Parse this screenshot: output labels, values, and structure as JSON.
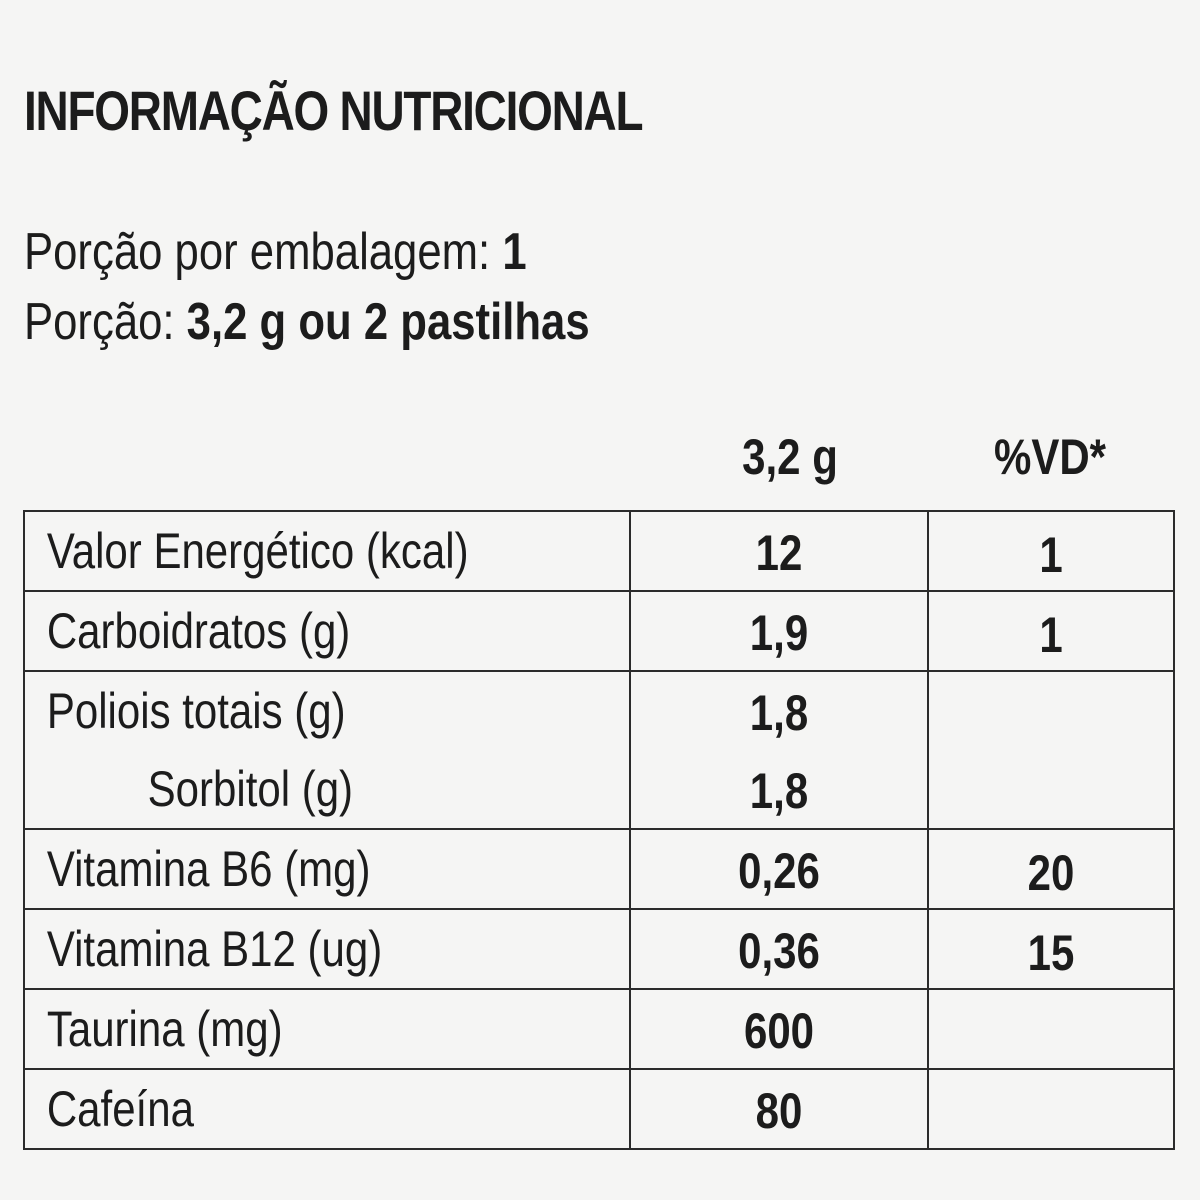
{
  "title": "INFORMAÇÃO NUTRICIONAL",
  "serving": {
    "per_package_label": "Porção por embalagem: ",
    "per_package_value": "1",
    "portion_label": "Porção: ",
    "portion_value": "3,2 g ou 2 pastilhas"
  },
  "table": {
    "headers": {
      "amount": "3,2 g",
      "dv": "%VD*"
    },
    "rows": [
      {
        "name": "Valor Energético (kcal)",
        "amount": "12",
        "dv": "1"
      },
      {
        "name": "Carboidratos (g)",
        "amount": "1,9",
        "dv": "1"
      },
      {
        "name": "Poliois totais (g)",
        "amount": "1,8",
        "dv": ""
      },
      {
        "name": "Sorbitol (g)",
        "amount": "1,8",
        "dv": ""
      },
      {
        "name": "Vitamina B6 (mg)",
        "amount": "0,26",
        "dv": "20"
      },
      {
        "name": "Vitamina B12 (ug)",
        "amount": "0,36",
        "dv": "15"
      },
      {
        "name": "Taurina (mg)",
        "amount": "600",
        "dv": ""
      },
      {
        "name": "Cafeína",
        "amount": "80",
        "dv": ""
      }
    ]
  }
}
